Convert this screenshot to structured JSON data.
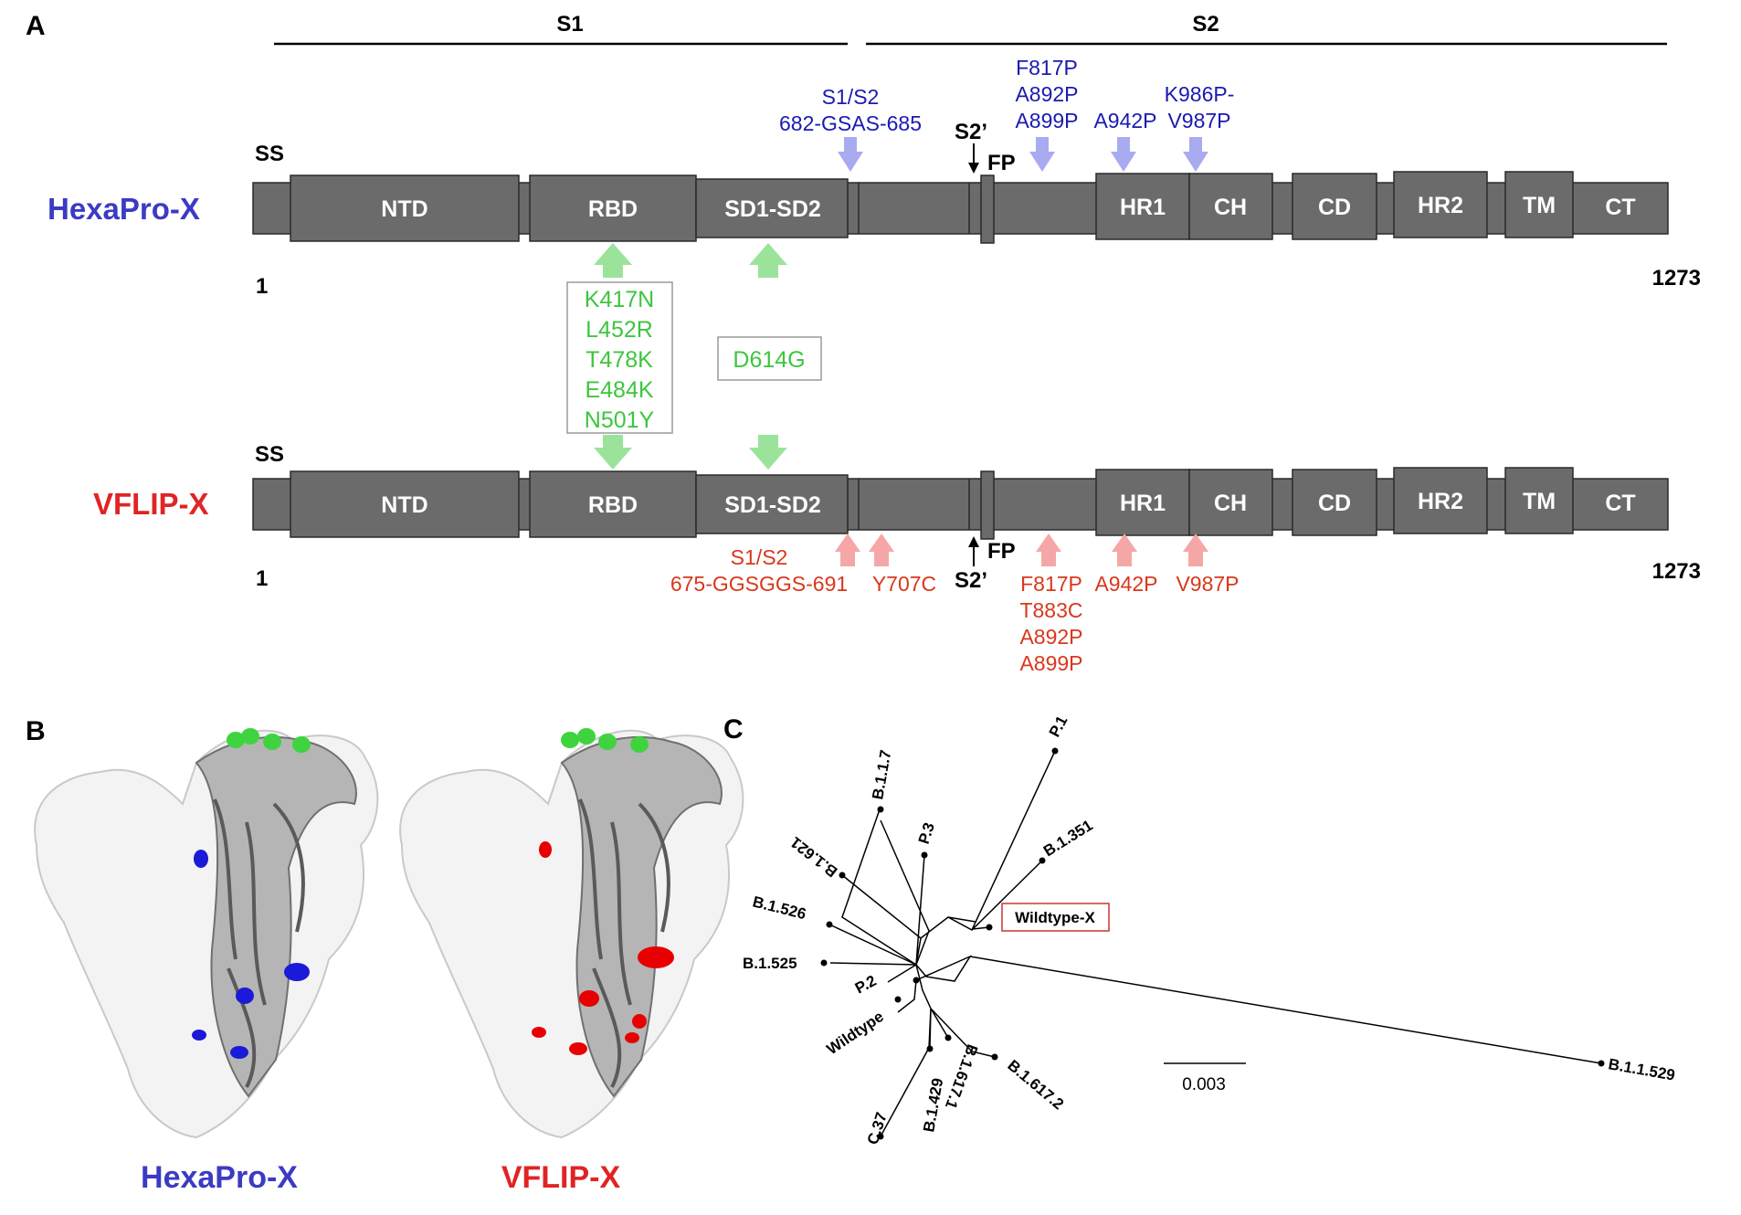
{
  "panels": {
    "a": "A",
    "b": "B",
    "c": "C"
  },
  "regions": {
    "s1": "S1",
    "s2": "S2"
  },
  "constructs": {
    "hexapro": {
      "name": "HexaPro-X",
      "ss": "SS",
      "start": "1",
      "end": "1273",
      "s2prime": "S2’",
      "fp": "FP"
    },
    "vflip": {
      "name": "VFLIP-X",
      "ss": "SS",
      "start": "1",
      "end": "1273",
      "s2prime": "S2’",
      "fp": "FP"
    }
  },
  "domains": [
    "NTD",
    "RBD",
    "SD1-SD2",
    "HR1",
    "CH",
    "CD",
    "HR2",
    "TM",
    "CT"
  ],
  "hexapro_mutations": {
    "s1s2": [
      "S1/S2",
      "682-GSAS-685"
    ],
    "fp_group": [
      "F817P",
      "A892P",
      "A899P"
    ],
    "a942": "A942P",
    "k986": [
      "K986P-",
      "V987P"
    ]
  },
  "shared_mutations": {
    "rbd": [
      "K417N",
      "L452R",
      "T478K",
      "E484K",
      "N501Y"
    ],
    "sd": "D614G"
  },
  "vflip_mutations": {
    "s1s2": [
      "S1/S2",
      "675-GGSGGS-691"
    ],
    "y707": "Y707C",
    "fp_group": [
      "F817P",
      "T883C",
      "A892P",
      "A899P"
    ],
    "a942": "A942P",
    "v987": "V987P"
  },
  "structure_labels": {
    "hexapro": "HexaPro-X",
    "vflip": "VFLIP-X"
  },
  "tree": {
    "leaves": [
      "P.1",
      "B.1.351",
      "B.1.1.7",
      "P.3",
      "B.1.621",
      "B.1.526",
      "B.1.525",
      "P.2",
      "Wildtype",
      "C.37",
      "B.1.429",
      "B.1.617.1",
      "B.1.617.2",
      "B.1.1.529"
    ],
    "highlighted": "Wildtype-X",
    "scale_bar": "0.003"
  },
  "colors": {
    "domain_fill": "#6b6b6b",
    "hexapro": "#3b3bc4",
    "vflip": "#e02424",
    "shared_mutation": "#3ec53e",
    "hexapro_arrow": "#a9abf0",
    "vflip_arrow": "#f5a7a7",
    "shared_arrow": "#9be39b",
    "hexapro_site": "#1a1ad8",
    "vflip_site": "#e80000",
    "rbd_site": "#3fd43f"
  }
}
